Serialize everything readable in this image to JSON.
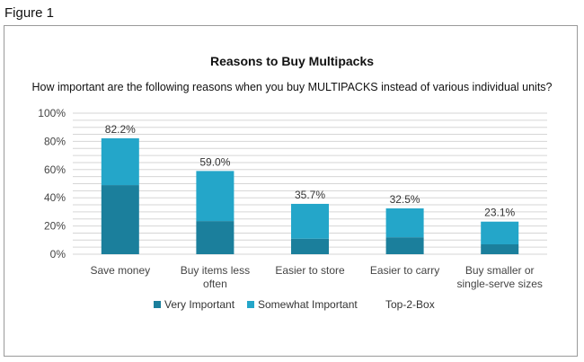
{
  "figure_label": "Figure 1",
  "colors": {
    "very_important": "#1b7f9c",
    "somewhat_important": "#24a6c9",
    "grid": "#d6d6d6"
  },
  "chart_data": {
    "type": "bar",
    "stacked": true,
    "title": "Reasons to Buy Multipacks",
    "subtitle": "How important are the following reasons when you buy MULTIPACKS instead of various individual units?",
    "categories": [
      [
        "Save money"
      ],
      [
        "Buy items less",
        "often"
      ],
      [
        "Easier to store"
      ],
      [
        "Easier to carry"
      ],
      [
        "Buy smaller or",
        "single-serve sizes"
      ]
    ],
    "series": [
      {
        "name": "Very Important",
        "values": [
          49,
          23.5,
          11,
          12,
          7
        ]
      },
      {
        "name": "Somewhat Important",
        "values": [
          33.2,
          35.5,
          24.7,
          20.5,
          16.1
        ]
      }
    ],
    "top2box": {
      "name": "Top-2-Box",
      "values": [
        82.2,
        59.0,
        35.7,
        32.5,
        23.1
      ],
      "labels": [
        "82.2%",
        "59.0%",
        "35.7%",
        "32.5%",
        "23.1%"
      ]
    },
    "ylim": [
      0,
      100
    ],
    "yticks": [
      "0%",
      "20%",
      "40%",
      "60%",
      "80%",
      "100%"
    ],
    "ytick_values": [
      0,
      20,
      40,
      60,
      80,
      100
    ],
    "grid": true,
    "legend_position": "bottom"
  }
}
